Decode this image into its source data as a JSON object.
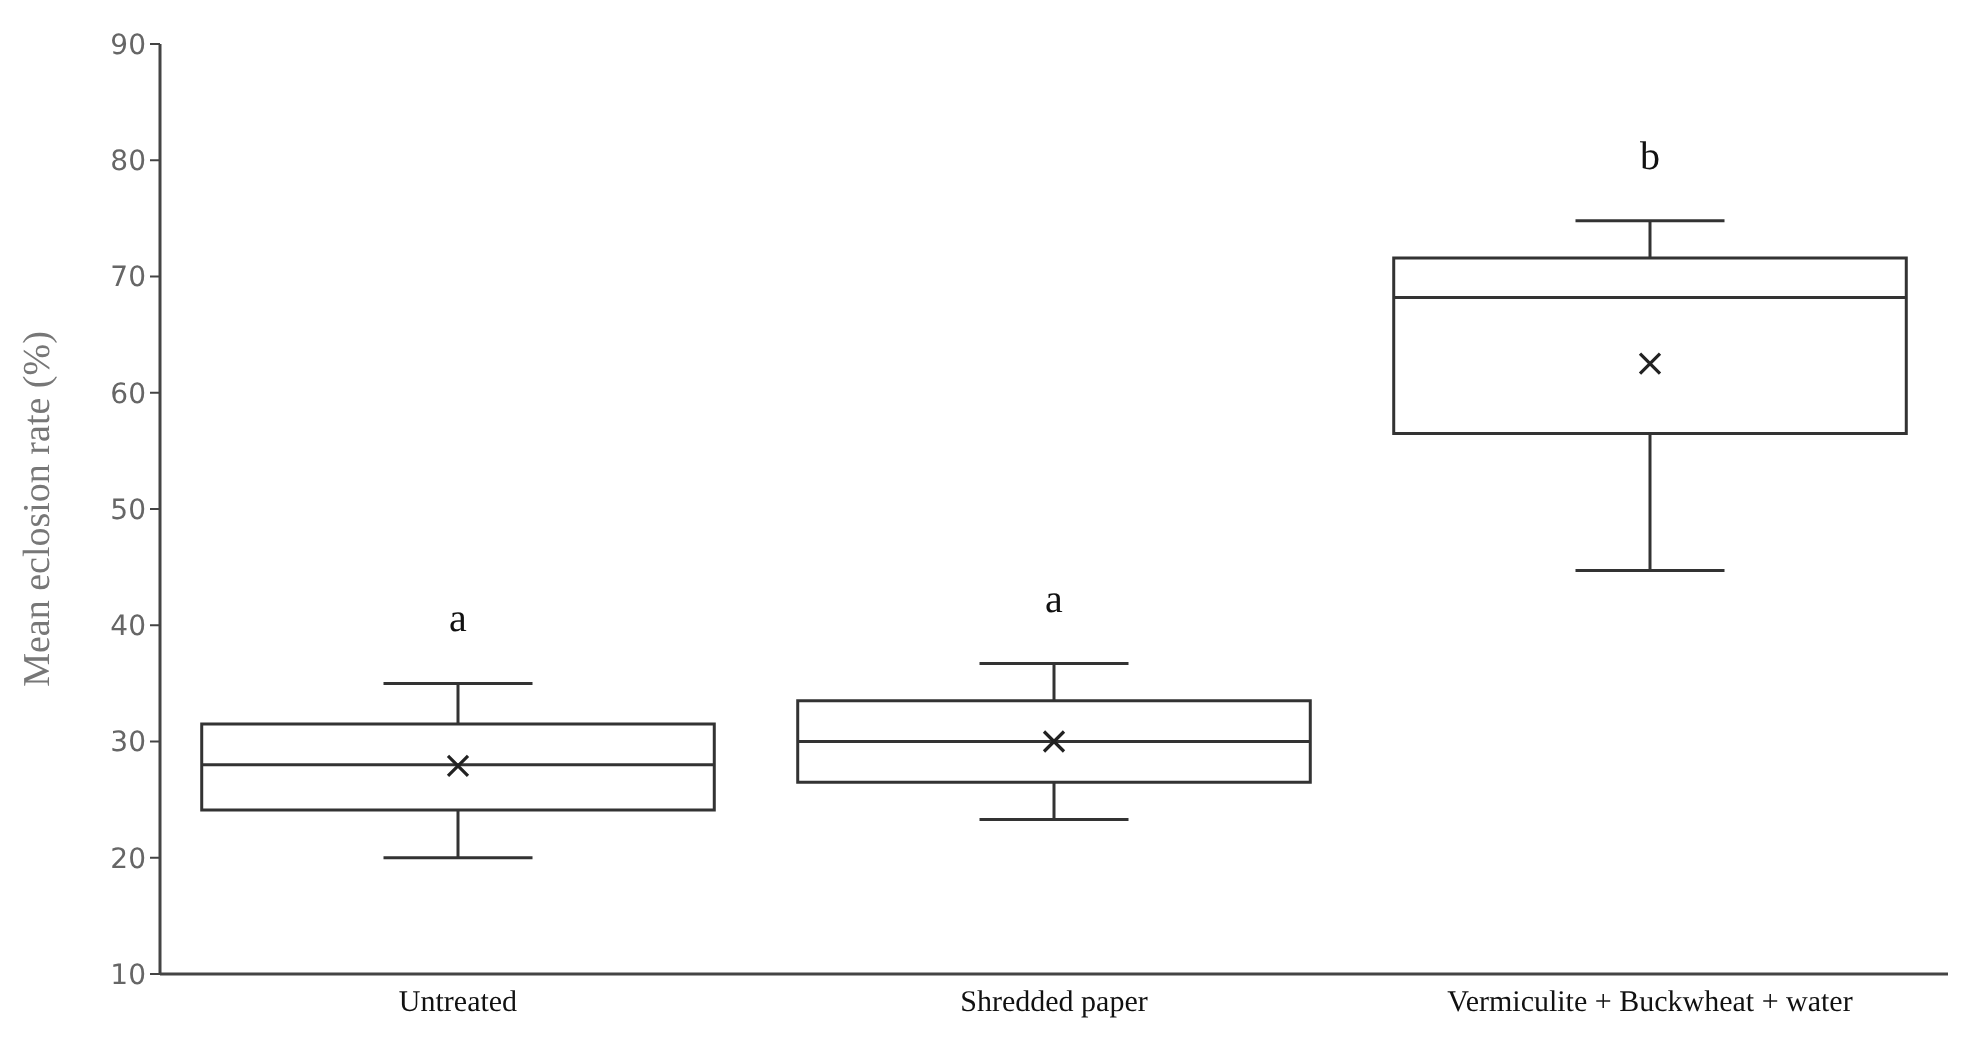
{
  "chart_data": {
    "type": "box",
    "ylabel": "Mean eclosion rate (%)",
    "categories": [
      "Untreated",
      "Shredded paper",
      "Vermiculite  + Buckwheat + water"
    ],
    "boxes": [
      {
        "low": 20,
        "q1": 24.1,
        "median": 28,
        "q3": 31.5,
        "high": 35,
        "mean": 27.9
      },
      {
        "low": 23.3,
        "q1": 26.5,
        "median": 30,
        "q3": 33.5,
        "high": 36.7,
        "mean": 30
      },
      {
        "low": 44.7,
        "q1": 56.5,
        "median": 68.2,
        "q3": 71.6,
        "high": 74.8,
        "mean": 62.5
      }
    ],
    "ylim": [
      10,
      90
    ],
    "yticks": [
      10,
      20,
      30,
      40,
      50,
      60,
      70,
      80,
      90
    ],
    "grid": false,
    "annotations": [
      "a",
      "a",
      "b"
    ]
  }
}
